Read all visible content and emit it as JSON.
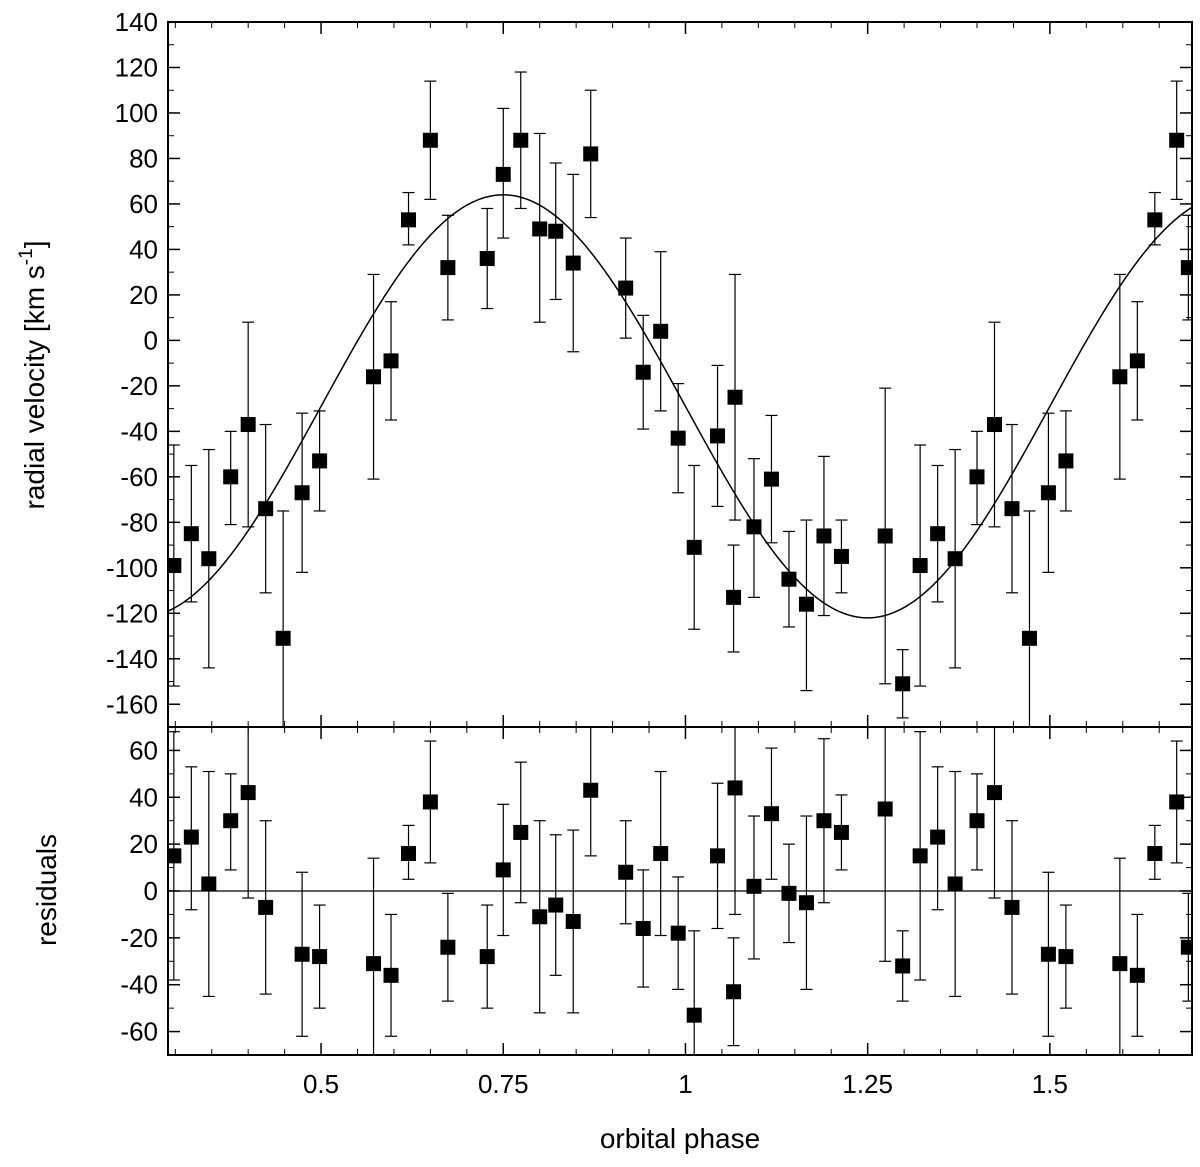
{
  "chart_data": [
    {
      "type": "scatter",
      "panel": "radial velocity",
      "ylabel_main": "radial velocity [km s",
      "ylabel_sup": "-1",
      "ylabel_close": "]",
      "xlim": [
        0.29,
        1.695
      ],
      "ylim": [
        -170,
        140
      ],
      "yticks": [
        140,
        120,
        100,
        80,
        60,
        40,
        20,
        0,
        -20,
        -40,
        -60,
        -80,
        -100,
        -120,
        -140,
        -160
      ],
      "ytick_labels": [
        "140",
        "120",
        "100",
        "80",
        "60",
        "40",
        "20",
        "0",
        "-20",
        "-40",
        "-60",
        "-80",
        "-100",
        "-120",
        "-140",
        "-160"
      ],
      "grid": false,
      "points": [
        {
          "x": 0.298,
          "y": -99,
          "err_lo": -152,
          "err_hi": -46
        },
        {
          "x": 0.322,
          "y": -85,
          "err_lo": -115,
          "err_hi": -55
        },
        {
          "x": 0.346,
          "y": -96,
          "err_lo": -144,
          "err_hi": -48
        },
        {
          "x": 0.376,
          "y": -60,
          "err_lo": -81,
          "err_hi": -40
        },
        {
          "x": 0.4,
          "y": -37,
          "err_lo": -82,
          "err_hi": 8
        },
        {
          "x": 0.424,
          "y": -74,
          "err_lo": -111,
          "err_hi": -37
        },
        {
          "x": 0.448,
          "y": -131,
          "err_lo": -170,
          "err_hi": -75
        },
        {
          "x": 0.474,
          "y": -67,
          "err_lo": -102,
          "err_hi": -32
        },
        {
          "x": 0.498,
          "y": -53,
          "err_lo": -75,
          "err_hi": -31
        },
        {
          "x": 0.572,
          "y": -16,
          "err_lo": -61,
          "err_hi": 29
        },
        {
          "x": 0.596,
          "y": -9,
          "err_lo": -35,
          "err_hi": 17
        },
        {
          "x": 0.62,
          "y": 53,
          "err_lo": 42,
          "err_hi": 65
        },
        {
          "x": 0.65,
          "y": 88,
          "err_lo": 62,
          "err_hi": 114
        },
        {
          "x": 0.674,
          "y": 32,
          "err_lo": 9,
          "err_hi": 55
        },
        {
          "x": 0.728,
          "y": 36,
          "err_lo": 14,
          "err_hi": 58
        },
        {
          "x": 0.75,
          "y": 73,
          "err_lo": 45,
          "err_hi": 102
        },
        {
          "x": 0.774,
          "y": 88,
          "err_lo": 58,
          "err_hi": 118
        },
        {
          "x": 0.8,
          "y": 49,
          "err_lo": 8,
          "err_hi": 91
        },
        {
          "x": 0.822,
          "y": 48,
          "err_lo": 18,
          "err_hi": 78
        },
        {
          "x": 0.846,
          "y": 34,
          "err_lo": -5,
          "err_hi": 73
        },
        {
          "x": 0.87,
          "y": 82,
          "err_lo": 54,
          "err_hi": 110
        },
        {
          "x": 0.918,
          "y": 23,
          "err_lo": 1,
          "err_hi": 45
        },
        {
          "x": 0.942,
          "y": -14,
          "err_lo": -39,
          "err_hi": 11
        },
        {
          "x": 0.966,
          "y": 4,
          "err_lo": -31,
          "err_hi": 39
        },
        {
          "x": 0.99,
          "y": -43,
          "err_lo": -67,
          "err_hi": -19
        },
        {
          "x": 1.012,
          "y": -91,
          "err_lo": -127,
          "err_hi": -55
        },
        {
          "x": 1.044,
          "y": -42,
          "err_lo": -73,
          "err_hi": -11
        },
        {
          "x": 1.066,
          "y": -113,
          "err_lo": -137,
          "err_hi": -90
        },
        {
          "x": 1.068,
          "y": -25,
          "err_lo": -79,
          "err_hi": 29
        },
        {
          "x": 1.094,
          "y": -82,
          "err_lo": -113,
          "err_hi": -52
        },
        {
          "x": 1.118,
          "y": -61,
          "err_lo": -89,
          "err_hi": -33
        },
        {
          "x": 1.142,
          "y": -105,
          "err_lo": -126,
          "err_hi": -84
        },
        {
          "x": 1.166,
          "y": -116,
          "err_lo": -154,
          "err_hi": -79
        },
        {
          "x": 1.19,
          "y": -86,
          "err_lo": -121,
          "err_hi": -51
        },
        {
          "x": 1.214,
          "y": -95,
          "err_lo": -111,
          "err_hi": -79
        },
        {
          "x": 1.274,
          "y": -86,
          "err_lo": -151,
          "err_hi": -21
        },
        {
          "x": 1.298,
          "y": -151,
          "err_lo": -166,
          "err_hi": -136
        },
        {
          "x": 1.322,
          "y": -99,
          "err_lo": -152,
          "err_hi": -46
        },
        {
          "x": 1.346,
          "y": -85,
          "err_lo": -115,
          "err_hi": -55
        },
        {
          "x": 1.37,
          "y": -96,
          "err_lo": -144,
          "err_hi": -48
        },
        {
          "x": 1.4,
          "y": -60,
          "err_lo": -81,
          "err_hi": -40
        },
        {
          "x": 1.424,
          "y": -37,
          "err_lo": -82,
          "err_hi": 8
        },
        {
          "x": 1.448,
          "y": -74,
          "err_lo": -111,
          "err_hi": -37
        },
        {
          "x": 1.472,
          "y": -131,
          "err_lo": -170,
          "err_hi": -75
        },
        {
          "x": 1.498,
          "y": -67,
          "err_lo": -102,
          "err_hi": -32
        },
        {
          "x": 1.522,
          "y": -53,
          "err_lo": -75,
          "err_hi": -31
        },
        {
          "x": 1.596,
          "y": -16,
          "err_lo": -61,
          "err_hi": 29
        },
        {
          "x": 1.62,
          "y": -9,
          "err_lo": -35,
          "err_hi": 17
        },
        {
          "x": 1.644,
          "y": 53,
          "err_lo": 42,
          "err_hi": 65
        },
        {
          "x": 1.674,
          "y": 88,
          "err_lo": 62,
          "err_hi": 114
        },
        {
          "x": 1.69,
          "y": 32,
          "err_lo": 9,
          "err_hi": 55
        }
      ],
      "model_curve": {
        "kind": "sinusoid",
        "gamma": -29,
        "amplitude": 93,
        "phase_of_max": 0.75,
        "period": 1.0
      }
    },
    {
      "type": "scatter",
      "panel": "residuals",
      "ylabel": "residuals",
      "xlabel": "orbital phase",
      "xlim": [
        0.29,
        1.695
      ],
      "ylim": [
        -70,
        70
      ],
      "yticks": [
        60,
        40,
        20,
        0,
        -20,
        -40,
        -60
      ],
      "ytick_labels": [
        "60",
        "40",
        "20",
        "0",
        "-20",
        "-40",
        "-60"
      ],
      "xticks": [
        0.5,
        0.75,
        1,
        1.25,
        1.5
      ],
      "xtick_labels": [
        "0.5",
        "0.75",
        "1",
        "1.25",
        "1.5"
      ],
      "zero_line": 0,
      "grid": false,
      "points": [
        {
          "x": 0.298,
          "y": 15,
          "err_lo": -38,
          "err_hi": 68
        },
        {
          "x": 0.322,
          "y": 23,
          "err_lo": -8,
          "err_hi": 53
        },
        {
          "x": 0.346,
          "y": 3,
          "err_lo": -45,
          "err_hi": 51
        },
        {
          "x": 0.376,
          "y": 30,
          "err_lo": 9,
          "err_hi": 50
        },
        {
          "x": 0.4,
          "y": 42,
          "err_lo": -3,
          "err_hi": 87
        },
        {
          "x": 0.424,
          "y": -7,
          "err_lo": -44,
          "err_hi": 30
        },
        {
          "x": 0.474,
          "y": -27,
          "err_lo": -62,
          "err_hi": 8
        },
        {
          "x": 0.498,
          "y": -28,
          "err_lo": -50,
          "err_hi": -6
        },
        {
          "x": 0.572,
          "y": -31,
          "err_lo": -76,
          "err_hi": 14
        },
        {
          "x": 0.596,
          "y": -36,
          "err_lo": -62,
          "err_hi": -10
        },
        {
          "x": 0.62,
          "y": 16,
          "err_lo": 5,
          "err_hi": 28
        },
        {
          "x": 0.65,
          "y": 38,
          "err_lo": 12,
          "err_hi": 64
        },
        {
          "x": 0.674,
          "y": -24,
          "err_lo": -47,
          "err_hi": -1
        },
        {
          "x": 0.728,
          "y": -28,
          "err_lo": -50,
          "err_hi": -6
        },
        {
          "x": 0.75,
          "y": 9,
          "err_lo": -19,
          "err_hi": 37
        },
        {
          "x": 0.774,
          "y": 25,
          "err_lo": -5,
          "err_hi": 55
        },
        {
          "x": 0.8,
          "y": -11,
          "err_lo": -52,
          "err_hi": 30
        },
        {
          "x": 0.822,
          "y": -6,
          "err_lo": -36,
          "err_hi": 24
        },
        {
          "x": 0.846,
          "y": -13,
          "err_lo": -52,
          "err_hi": 26
        },
        {
          "x": 0.87,
          "y": 43,
          "err_lo": 15,
          "err_hi": 71
        },
        {
          "x": 0.918,
          "y": 8,
          "err_lo": -14,
          "err_hi": 30
        },
        {
          "x": 0.942,
          "y": -16,
          "err_lo": -41,
          "err_hi": 9
        },
        {
          "x": 0.966,
          "y": 16,
          "err_lo": -19,
          "err_hi": 51
        },
        {
          "x": 0.99,
          "y": -18,
          "err_lo": -42,
          "err_hi": 6
        },
        {
          "x": 1.012,
          "y": -53,
          "err_lo": -89,
          "err_hi": -17
        },
        {
          "x": 1.044,
          "y": 15,
          "err_lo": -16,
          "err_hi": 46
        },
        {
          "x": 1.066,
          "y": -43,
          "err_lo": -66,
          "err_hi": -20
        },
        {
          "x": 1.068,
          "y": 44,
          "err_lo": -10,
          "err_hi": 98
        },
        {
          "x": 1.094,
          "y": 2,
          "err_lo": -29,
          "err_hi": 32
        },
        {
          "x": 1.118,
          "y": 33,
          "err_lo": 5,
          "err_hi": 61
        },
        {
          "x": 1.142,
          "y": -1,
          "err_lo": -22,
          "err_hi": 20
        },
        {
          "x": 1.166,
          "y": -5,
          "err_lo": -42,
          "err_hi": 32
        },
        {
          "x": 1.19,
          "y": 30,
          "err_lo": -5,
          "err_hi": 65
        },
        {
          "x": 1.214,
          "y": 25,
          "err_lo": 9,
          "err_hi": 41
        },
        {
          "x": 1.274,
          "y": 35,
          "err_lo": -30,
          "err_hi": 100
        },
        {
          "x": 1.298,
          "y": -32,
          "err_lo": -47,
          "err_hi": -17
        },
        {
          "x": 1.322,
          "y": 15,
          "err_lo": -38,
          "err_hi": 68
        },
        {
          "x": 1.346,
          "y": 23,
          "err_lo": -8,
          "err_hi": 53
        },
        {
          "x": 1.37,
          "y": 3,
          "err_lo": -45,
          "err_hi": 51
        },
        {
          "x": 1.4,
          "y": 30,
          "err_lo": 9,
          "err_hi": 50
        },
        {
          "x": 1.424,
          "y": 42,
          "err_lo": -3,
          "err_hi": 87
        },
        {
          "x": 1.448,
          "y": -7,
          "err_lo": -44,
          "err_hi": 30
        },
        {
          "x": 1.498,
          "y": -27,
          "err_lo": -62,
          "err_hi": 8
        },
        {
          "x": 1.522,
          "y": -28,
          "err_lo": -50,
          "err_hi": -6
        },
        {
          "x": 1.596,
          "y": -31,
          "err_lo": -76,
          "err_hi": 14
        },
        {
          "x": 1.62,
          "y": -36,
          "err_lo": -62,
          "err_hi": -10
        },
        {
          "x": 1.644,
          "y": 16,
          "err_lo": 5,
          "err_hi": 28
        },
        {
          "x": 1.674,
          "y": 38,
          "err_lo": 12,
          "err_hi": 64
        },
        {
          "x": 1.69,
          "y": -24,
          "err_lo": -47,
          "err_hi": -1
        }
      ]
    }
  ]
}
